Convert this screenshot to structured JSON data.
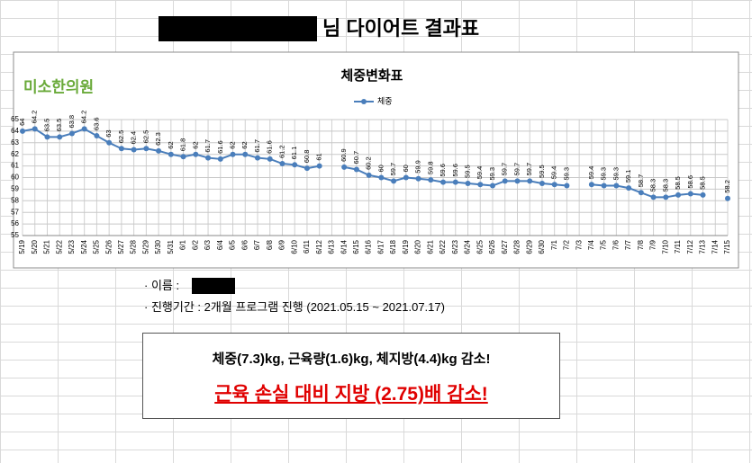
{
  "header": {
    "title": "님 다이어트 결과표"
  },
  "logo": "미소한의원",
  "chart_data": {
    "type": "line",
    "title": "체중변화표",
    "categories": [
      "5/19",
      "5/20",
      "5/21",
      "5/22",
      "5/23",
      "5/24",
      "5/25",
      "5/26",
      "5/27",
      "5/28",
      "5/29",
      "5/30",
      "5/31",
      "6/1",
      "6/2",
      "6/3",
      "6/4",
      "6/5",
      "6/6",
      "6/7",
      "6/8",
      "6/9",
      "6/10",
      "6/11",
      "6/12",
      "6/13",
      "6/14",
      "6/15",
      "6/16",
      "6/17",
      "6/18",
      "6/19",
      "6/20",
      "6/21",
      "6/22",
      "6/23",
      "6/24",
      "6/25",
      "6/26",
      "6/27",
      "6/28",
      "6/29",
      "6/30",
      "7/1",
      "7/2",
      "7/3",
      "7/4",
      "7/5",
      "7/6",
      "7/7",
      "7/8",
      "7/9",
      "7/10",
      "7/11",
      "7/12",
      "7/13",
      "7/14",
      "7/15"
    ],
    "series": [
      {
        "name": "체중",
        "color": "#4a7ebb",
        "values": [
          64,
          64.2,
          63.5,
          63.5,
          63.8,
          64.2,
          63.6,
          63,
          62.5,
          62.4,
          62.5,
          62.3,
          62,
          61.8,
          62,
          61.7,
          61.6,
          62,
          62,
          61.7,
          61.6,
          61.2,
          61.1,
          60.8,
          61,
          null,
          60.9,
          60.7,
          60.2,
          60,
          59.7,
          60,
          59.9,
          59.8,
          59.6,
          59.6,
          59.5,
          59.4,
          59.3,
          59.7,
          59.7,
          59.7,
          59.5,
          59.4,
          59.3,
          null,
          59.4,
          59.3,
          59.3,
          59.1,
          58.7,
          58.3,
          58.3,
          58.5,
          58.6,
          58.5,
          null,
          58.2
        ]
      }
    ],
    "ylim": [
      55,
      65
    ],
    "yticks": [
      55,
      56,
      57,
      58,
      59,
      60,
      61,
      62,
      63,
      64,
      65
    ],
    "grid": true,
    "legend": "top"
  },
  "info": {
    "name_label": "· 이름 :",
    "period": "· 진행기간 : 2개월 프로그램 진행 (2021.05.15 ~ 2021.07.17)"
  },
  "summary": {
    "line1": "체중(7.3)kg, 근육량(1.6)kg, 체지방(4.4)kg 감소!",
    "line2": "근육 손실 대비 지방 (2.75)배 감소!"
  }
}
